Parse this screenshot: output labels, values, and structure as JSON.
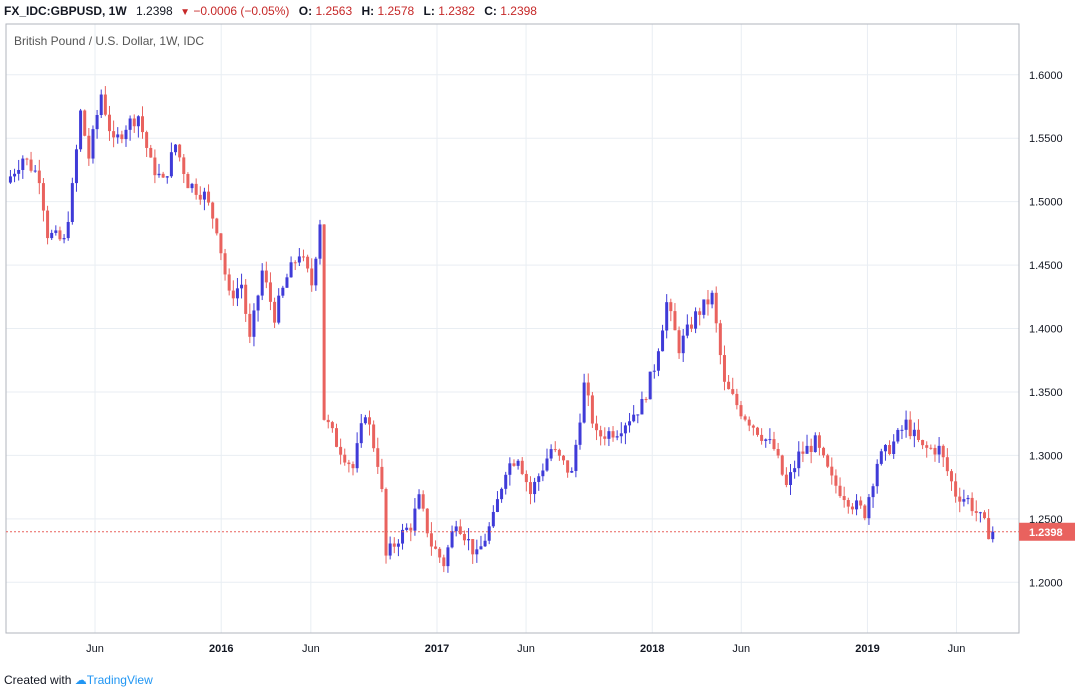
{
  "header": {
    "symbol": "FX_IDC:GBPUSD, 1W",
    "last": "1.2398",
    "change": "−0.0006 (−0.05%)",
    "open_label": "O:",
    "open": "1.2563",
    "high_label": "H:",
    "high": "1.2578",
    "low_label": "L:",
    "low": "1.2382",
    "close_label": "C:",
    "close": "1.2398"
  },
  "footer": {
    "created_with": "Created with",
    "brand": "TradingView"
  },
  "colors": {
    "up": "#3f3bd8",
    "down": "#e9625e",
    "grid": "#e9eef3",
    "last_price_bg": "#e9625e"
  },
  "chart_data": {
    "type": "candlestick",
    "title": "British Pound / U.S. Dollar, 1W, IDC",
    "y_ticks": [
      "1.2000",
      "1.2500",
      "1.3000",
      "1.3500",
      "1.4000",
      "1.4500",
      "1.5000",
      "1.5500",
      "1.6000"
    ],
    "ylim": [
      1.16,
      1.64
    ],
    "x_ticks": [
      {
        "label": "Jun",
        "date": "2015-06-01",
        "bold": false
      },
      {
        "label": "2016",
        "date": "2016-01-01",
        "bold": true
      },
      {
        "label": "Jun",
        "date": "2016-06-01",
        "bold": false
      },
      {
        "label": "2017",
        "date": "2017-01-01",
        "bold": true
      },
      {
        "label": "Jun",
        "date": "2017-06-01",
        "bold": false
      },
      {
        "label": "2018",
        "date": "2018-01-01",
        "bold": true
      },
      {
        "label": "Jun",
        "date": "2018-06-01",
        "bold": false
      },
      {
        "label": "2019",
        "date": "2019-01-01",
        "bold": true
      },
      {
        "label": "Jun",
        "date": "2019-06-01",
        "bold": false
      }
    ],
    "xlim": [
      "2015-01-01",
      "2019-09-15"
    ],
    "last_price": 1.2398,
    "last_price_label": "1.2398",
    "grid": true,
    "price_path": [
      [
        "2015-01-05",
        1.515
      ],
      [
        "2015-02-02",
        1.535
      ],
      [
        "2015-03-02",
        1.52
      ],
      [
        "2015-03-16",
        1.475
      ],
      [
        "2015-04-13",
        1.468
      ],
      [
        "2015-04-27",
        1.51
      ],
      [
        "2015-05-11",
        1.57
      ],
      [
        "2015-05-25",
        1.535
      ],
      [
        "2015-06-15",
        1.585
      ],
      [
        "2015-07-06",
        1.545
      ],
      [
        "2015-07-27",
        1.56
      ],
      [
        "2015-08-17",
        1.568
      ],
      [
        "2015-09-07",
        1.53
      ],
      [
        "2015-09-28",
        1.515
      ],
      [
        "2015-10-19",
        1.545
      ],
      [
        "2015-11-09",
        1.515
      ],
      [
        "2015-12-07",
        1.505
      ],
      [
        "2015-12-28",
        1.48
      ],
      [
        "2016-01-18",
        1.425
      ],
      [
        "2016-02-08",
        1.435
      ],
      [
        "2016-02-22",
        1.39
      ],
      [
        "2016-03-14",
        1.445
      ],
      [
        "2016-04-04",
        1.41
      ],
      [
        "2016-04-25",
        1.44
      ],
      [
        "2016-05-16",
        1.46
      ],
      [
        "2016-06-06",
        1.435
      ],
      [
        "2016-06-20",
        1.485
      ],
      [
        "2016-06-27",
        1.33
      ],
      [
        "2016-07-18",
        1.31
      ],
      [
        "2016-08-15",
        1.29
      ],
      [
        "2016-09-05",
        1.335
      ],
      [
        "2016-09-26",
        1.295
      ],
      [
        "2016-10-03",
        1.27
      ],
      [
        "2016-10-10",
        1.22
      ],
      [
        "2016-10-31",
        1.235
      ],
      [
        "2016-11-21",
        1.245
      ],
      [
        "2016-12-05",
        1.265
      ],
      [
        "2016-12-26",
        1.23
      ],
      [
        "2017-01-16",
        1.215
      ],
      [
        "2017-02-06",
        1.25
      ],
      [
        "2017-03-13",
        1.22
      ],
      [
        "2017-04-10",
        1.25
      ],
      [
        "2017-05-01",
        1.29
      ],
      [
        "2017-05-22",
        1.3
      ],
      [
        "2017-06-12",
        1.27
      ],
      [
        "2017-07-17",
        1.305
      ],
      [
        "2017-08-21",
        1.285
      ],
      [
        "2017-09-11",
        1.355
      ],
      [
        "2017-10-02",
        1.315
      ],
      [
        "2017-11-06",
        1.32
      ],
      [
        "2017-12-18",
        1.34
      ],
      [
        "2018-01-08",
        1.37
      ],
      [
        "2018-01-29",
        1.42
      ],
      [
        "2018-02-19",
        1.385
      ],
      [
        "2018-03-19",
        1.41
      ],
      [
        "2018-04-16",
        1.425
      ],
      [
        "2018-05-07",
        1.355
      ],
      [
        "2018-06-04",
        1.335
      ],
      [
        "2018-07-02",
        1.32
      ],
      [
        "2018-07-30",
        1.305
      ],
      [
        "2018-08-20",
        1.275
      ],
      [
        "2018-09-10",
        1.3
      ],
      [
        "2018-10-08",
        1.31
      ],
      [
        "2018-11-05",
        1.28
      ],
      [
        "2018-12-10",
        1.262
      ],
      [
        "2018-12-31",
        1.255
      ],
      [
        "2019-01-21",
        1.295
      ],
      [
        "2019-02-18",
        1.31
      ],
      [
        "2019-03-11",
        1.325
      ],
      [
        "2019-04-08",
        1.305
      ],
      [
        "2019-05-06",
        1.305
      ],
      [
        "2019-06-03",
        1.27
      ],
      [
        "2019-06-24",
        1.265
      ],
      [
        "2019-07-15",
        1.25
      ],
      [
        "2019-07-29",
        1.2398
      ]
    ]
  }
}
